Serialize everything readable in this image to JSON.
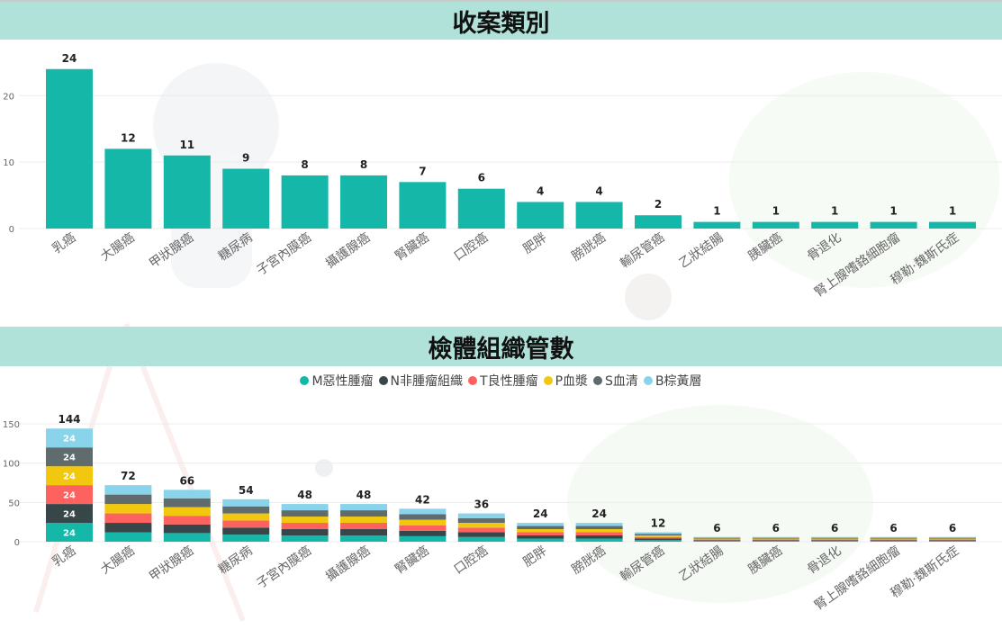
{
  "titles": {
    "chart1": "收案類別",
    "chart2": "檢體組織管數"
  },
  "chart_data": [
    {
      "type": "bar",
      "title": "收案類別",
      "categories": [
        "乳癌",
        "大腸癌",
        "甲狀腺癌",
        "糖尿病",
        "子宮內膜癌",
        "攝護腺癌",
        "腎臟癌",
        "口腔癌",
        "肥胖",
        "膀胱癌",
        "輸尿管癌",
        "乙狀結腸",
        "胰臟癌",
        "骨退化",
        "腎上腺嗜鉻細胞瘤",
        "穆勒·魏斯氏症"
      ],
      "values": [
        24,
        12,
        11,
        9,
        8,
        8,
        7,
        6,
        4,
        4,
        2,
        1,
        1,
        1,
        1,
        1
      ],
      "yticks": [
        0,
        10,
        20
      ],
      "ylim": [
        0,
        26
      ],
      "grid": true,
      "color": "#14b7a8"
    },
    {
      "type": "bar",
      "stacked": true,
      "title": "檢體組織管數",
      "categories": [
        "乳癌",
        "大腸癌",
        "甲狀腺癌",
        "糖尿病",
        "子宮內膜癌",
        "攝護腺癌",
        "腎臟癌",
        "口腔癌",
        "肥胖",
        "膀胱癌",
        "輸尿管癌",
        "乙狀結腸",
        "胰臟癌",
        "骨退化",
        "腎上腺嗜鉻細胞瘤",
        "穆勒·魏斯氏症"
      ],
      "series": [
        {
          "name": "M惡性腫瘤",
          "color": "#14b7a8",
          "values": [
            24,
            12,
            11,
            9,
            8,
            8,
            7,
            6,
            4,
            4,
            2,
            1,
            1,
            1,
            1,
            1
          ]
        },
        {
          "name": "N非腫瘤組織",
          "color": "#374649",
          "values": [
            24,
            12,
            11,
            9,
            8,
            8,
            7,
            6,
            4,
            4,
            2,
            1,
            1,
            1,
            1,
            1
          ]
        },
        {
          "name": "T良性腫瘤",
          "color": "#fd625e",
          "values": [
            24,
            12,
            11,
            9,
            8,
            8,
            7,
            6,
            4,
            4,
            2,
            1,
            1,
            1,
            1,
            1
          ]
        },
        {
          "name": "P血漿",
          "color": "#f2c80f",
          "values": [
            24,
            12,
            11,
            9,
            8,
            8,
            7,
            6,
            4,
            4,
            2,
            1,
            1,
            1,
            1,
            1
          ]
        },
        {
          "name": "S血清",
          "color": "#5f6b6d",
          "values": [
            24,
            12,
            11,
            9,
            8,
            8,
            7,
            6,
            4,
            4,
            2,
            1,
            1,
            1,
            1,
            1
          ]
        },
        {
          "name": "B棕黃層",
          "color": "#8ad4eb",
          "values": [
            24,
            12,
            11,
            9,
            8,
            8,
            7,
            6,
            4,
            4,
            2,
            1,
            1,
            1,
            1,
            1
          ]
        }
      ],
      "totals": [
        144,
        72,
        66,
        54,
        48,
        48,
        42,
        36,
        24,
        24,
        12,
        6,
        6,
        6,
        6,
        6
      ],
      "yticks": [
        0,
        50,
        100,
        150
      ],
      "ylim": [
        0,
        160
      ],
      "grid": true,
      "legend": "top-center",
      "segment_labels_for": "乳癌"
    }
  ]
}
